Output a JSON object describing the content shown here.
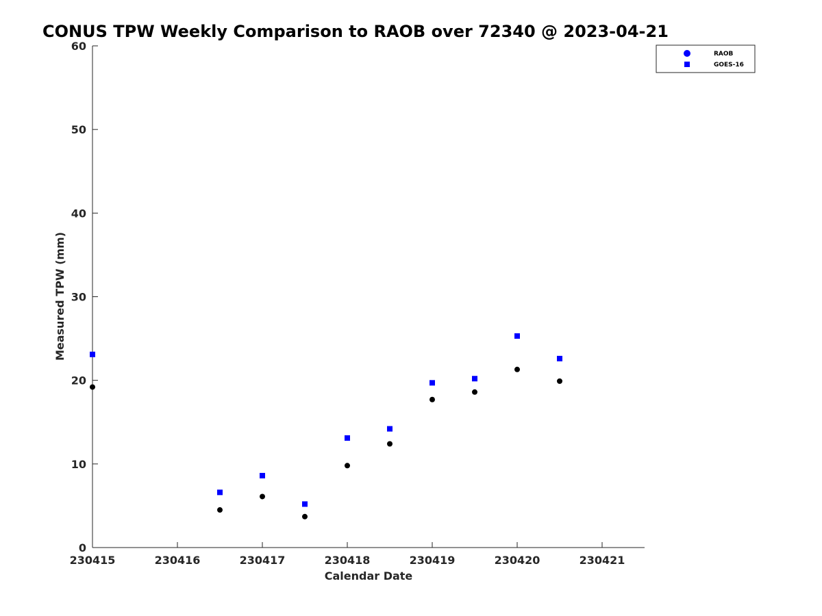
{
  "chart_data": {
    "type": "scatter",
    "title": "CONUS TPW Weekly Comparison to RAOB over 72340 @ 2023-04-21",
    "xlabel": "Calendar Date",
    "ylabel": "Measured TPW (mm)",
    "xlim": [
      0,
      6.5
    ],
    "ylim": [
      0,
      60
    ],
    "x_ticks": [
      0,
      1,
      2,
      3,
      4,
      5,
      6
    ],
    "x_tick_labels": [
      "230415",
      "230416",
      "230417",
      "230418",
      "230419",
      "230420",
      "230421"
    ],
    "y_ticks": [
      0,
      10,
      20,
      30,
      40,
      50,
      60
    ],
    "y_tick_labels": [
      "0",
      "10",
      "20",
      "30",
      "40",
      "50",
      "60"
    ],
    "grid": false,
    "legend_position": "top-right",
    "series": [
      {
        "name": "RAOB",
        "marker": "circle",
        "color": "#000000",
        "legend_color": "#0000ff",
        "x": [
          0,
          1.5,
          2,
          2.5,
          3,
          3.5,
          4,
          4.5,
          5,
          5.5
        ],
        "values": [
          19.2,
          4.5,
          6.1,
          3.7,
          9.8,
          12.4,
          17.7,
          18.6,
          21.3,
          19.9
        ]
      },
      {
        "name": "GOES-16",
        "marker": "square",
        "color": "#0000ff",
        "legend_color": "#0000ff",
        "x": [
          0,
          1.5,
          2,
          2.5,
          3,
          3.5,
          4,
          4.5,
          5,
          5.5
        ],
        "values": [
          23.1,
          6.6,
          8.6,
          5.2,
          13.1,
          14.2,
          19.7,
          20.2,
          25.3,
          22.6
        ]
      }
    ]
  }
}
